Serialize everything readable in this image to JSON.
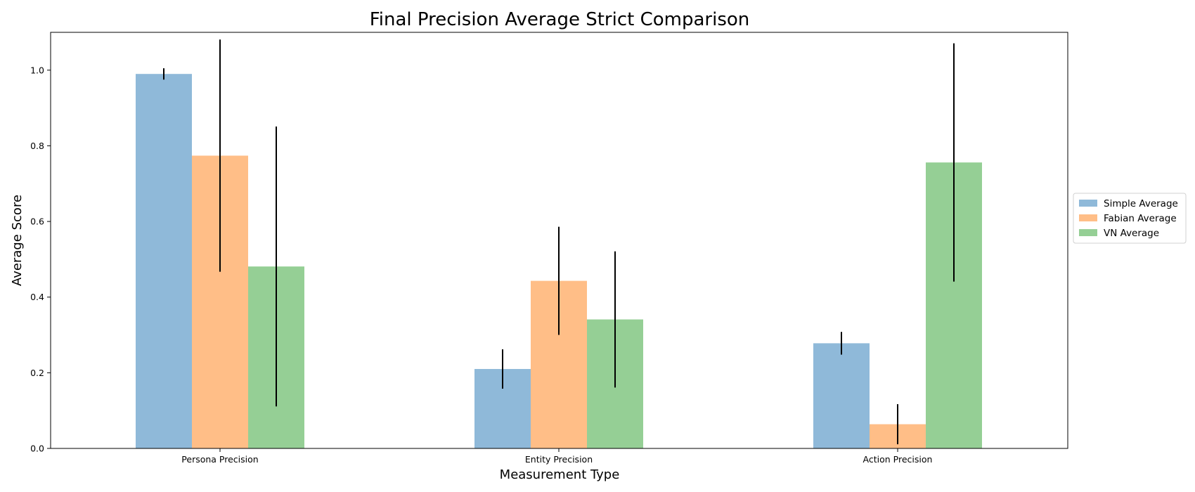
{
  "chart_data": {
    "type": "bar",
    "title": "Final Precision Average Strict Comparison",
    "xlabel": "Measurement Type",
    "ylabel": "Average Score",
    "categories": [
      "Persona Precision",
      "Entity Precision",
      "Action Precision"
    ],
    "series": [
      {
        "name": "Simple Average",
        "color": "#8fb9d9",
        "values": [
          0.99,
          0.21,
          0.278
        ],
        "errors": [
          0.015,
          0.052,
          0.03
        ]
      },
      {
        "name": "Fabian Average",
        "color": "#ffbe87",
        "values": [
          0.774,
          0.443,
          0.064
        ],
        "errors": [
          0.307,
          0.143,
          0.053
        ]
      },
      {
        "name": "VN Average",
        "color": "#95cf95",
        "values": [
          0.481,
          0.341,
          0.756
        ],
        "errors": [
          0.37,
          0.18,
          0.315
        ]
      }
    ],
    "ylim": [
      0,
      1.1
    ],
    "yticks": [
      "0.0",
      "0.2",
      "0.4",
      "0.6",
      "0.8",
      "1.0"
    ],
    "grid": false,
    "legend_position": "right-outside"
  }
}
